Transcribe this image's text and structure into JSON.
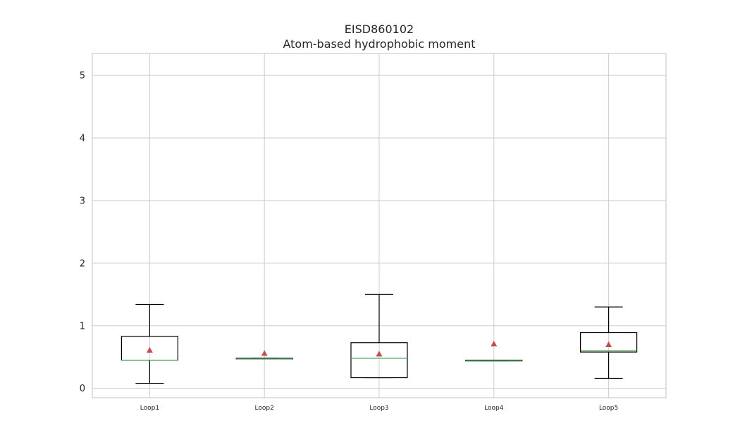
{
  "chart_data": {
    "type": "box",
    "title_line1": "EISD860102",
    "title_line2": "Atom-based hydrophobic moment",
    "xlabel": "",
    "ylabel": "",
    "ylim": [
      -0.15,
      5.35
    ],
    "yticks": [
      "0",
      "1",
      "2",
      "3",
      "4",
      "5"
    ],
    "grid": true,
    "categories": [
      "Loop1",
      "Loop2",
      "Loop3",
      "Loop4",
      "Loop5"
    ],
    "boxes": [
      {
        "label": "Loop1",
        "whisker_low": 0.08,
        "q1": 0.45,
        "median": 0.45,
        "q3": 0.83,
        "whisker_high": 1.34,
        "mean": 0.61
      },
      {
        "label": "Loop2",
        "whisker_low": 0.47,
        "q1": 0.47,
        "median": 0.47,
        "q3": 0.48,
        "whisker_high": 0.48,
        "mean": 0.56
      },
      {
        "label": "Loop3",
        "whisker_low": 0.17,
        "q1": 0.17,
        "median": 0.48,
        "q3": 0.73,
        "whisker_high": 1.5,
        "mean": 0.55
      },
      {
        "label": "Loop4",
        "whisker_low": 0.44,
        "q1": 0.44,
        "median": 0.44,
        "q3": 0.45,
        "whisker_high": 0.45,
        "mean": 0.71
      },
      {
        "label": "Loop5",
        "whisker_low": 0.16,
        "q1": 0.58,
        "median": 0.6,
        "q3": 0.89,
        "whisker_high": 1.3,
        "mean": 0.7
      }
    ],
    "colors": {
      "box": "#000000",
      "median": "#55a868",
      "mean_marker": "#c44e52",
      "grid": "#cccccc",
      "frame": "#cccccc",
      "text": "#262626"
    }
  }
}
